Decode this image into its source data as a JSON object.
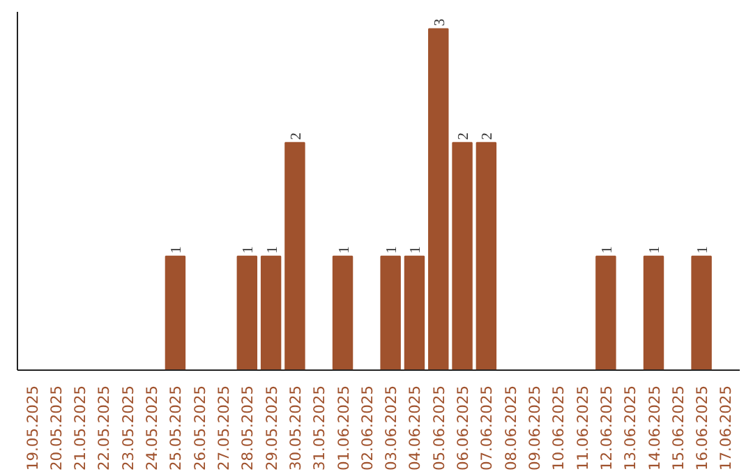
{
  "chart_data": {
    "type": "bar",
    "categories": [
      "19.05.2025",
      "20.05.2025",
      "21.05.2025",
      "22.05.2025",
      "23.05.2025",
      "24.05.2025",
      "25.05.2025",
      "26.05.2025",
      "27.05.2025",
      "28.05.2025",
      "29.05.2025",
      "30.05.2025",
      "31.05.2025",
      "01.06.2025",
      "02.06.2025",
      "03.06.2025",
      "04.06.2025",
      "05.06.2025",
      "06.06.2025",
      "07.06.2025",
      "08.06.2025",
      "09.06.2025",
      "10.06.2025",
      "11.06.2025",
      "12.06.2025",
      "13.06.2025",
      "14.06.2025",
      "15.06.2025",
      "16.06.2025",
      "17.06.2025"
    ],
    "values": [
      0,
      0,
      0,
      0,
      0,
      0,
      1,
      0,
      0,
      1,
      1,
      2,
      0,
      1,
      0,
      1,
      1,
      3,
      2,
      2,
      0,
      0,
      0,
      0,
      1,
      0,
      1,
      0,
      1,
      0
    ],
    "value_labels": [
      null,
      null,
      null,
      null,
      null,
      null,
      "1",
      null,
      null,
      "1",
      "1",
      "2",
      null,
      "1",
      null,
      "1",
      "1",
      "3",
      "2",
      "2",
      null,
      null,
      null,
      null,
      "1",
      null,
      "1",
      null,
      "1",
      null
    ],
    "color": "#a0522d",
    "tick_labels": "x",
    "grid": false
  }
}
